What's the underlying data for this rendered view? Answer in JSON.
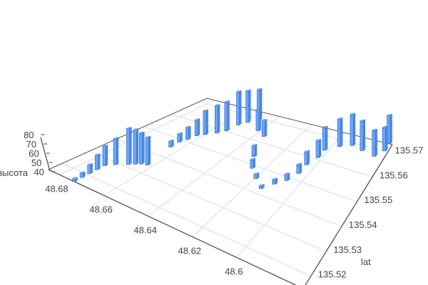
{
  "chart_data": {
    "type": "bar3d",
    "title": "",
    "xlabel": "",
    "ylabel": "lat",
    "zlabel": "высота",
    "xlim": [
      48.57,
      48.685
    ],
    "ylim": [
      135.515,
      135.573
    ],
    "zlim": [
      35,
      82
    ],
    "x_ticks": [
      "48.6",
      "48.62",
      "48.64",
      "48.66",
      "48.68"
    ],
    "y_ticks": [
      "135.52",
      "135.53",
      "135.54",
      "135.55",
      "135.56",
      "135.57"
    ],
    "z_ticks": [
      "40",
      "50",
      "60",
      "70",
      "80"
    ],
    "grid": true,
    "bar_color": "#6ea6f5",
    "bar_edge_color": "#2f6fd6",
    "points": [
      [
        48.6735,
        135.515,
        38
      ],
      [
        48.6735,
        135.5179,
        40
      ],
      [
        48.6735,
        135.5208,
        45
      ],
      [
        48.6735,
        135.5237,
        52
      ],
      [
        48.6735,
        135.5266,
        58
      ],
      [
        48.6712,
        135.5289,
        66
      ],
      [
        48.6677,
        135.5312,
        78
      ],
      [
        48.666,
        135.5325,
        76
      ],
      [
        48.6643,
        135.5335,
        72
      ],
      [
        48.662,
        135.5341,
        68
      ],
      [
        48.6643,
        135.5452,
        42
      ],
      [
        48.6643,
        135.5486,
        45
      ],
      [
        48.663,
        135.551,
        50
      ],
      [
        48.662,
        135.5539,
        55
      ],
      [
        48.6597,
        135.5556,
        65
      ],
      [
        48.6563,
        135.5579,
        70
      ],
      [
        48.654,
        135.5602,
        72
      ],
      [
        48.6528,
        135.5643,
        78
      ],
      [
        48.6505,
        135.5666,
        76
      ],
      [
        48.647,
        135.5689,
        75
      ],
      [
        48.6413,
        135.5643,
        62
      ],
      [
        48.6356,
        135.5626,
        55
      ],
      [
        48.6298,
        135.5533,
        48
      ],
      [
        48.6252,
        135.5486,
        45
      ],
      [
        48.6195,
        135.5452,
        40
      ],
      [
        48.6137,
        135.5423,
        38
      ],
      [
        48.6103,
        135.5457,
        40
      ],
      [
        48.6068,
        135.5486,
        42
      ],
      [
        48.6045,
        135.5527,
        45
      ],
      [
        48.6045,
        135.5568,
        50
      ],
      [
        48.6022,
        135.5608,
        55
      ],
      [
        48.6022,
        135.5643,
        62
      ],
      [
        48.5965,
        135.5672,
        68
      ],
      [
        48.5907,
        135.5689,
        72
      ],
      [
        48.5838,
        135.568,
        70
      ],
      [
        48.5758,
        135.5672,
        65
      ],
      [
        48.5723,
        135.5701,
        62
      ],
      [
        48.5723,
        135.573,
        68
      ]
    ]
  }
}
